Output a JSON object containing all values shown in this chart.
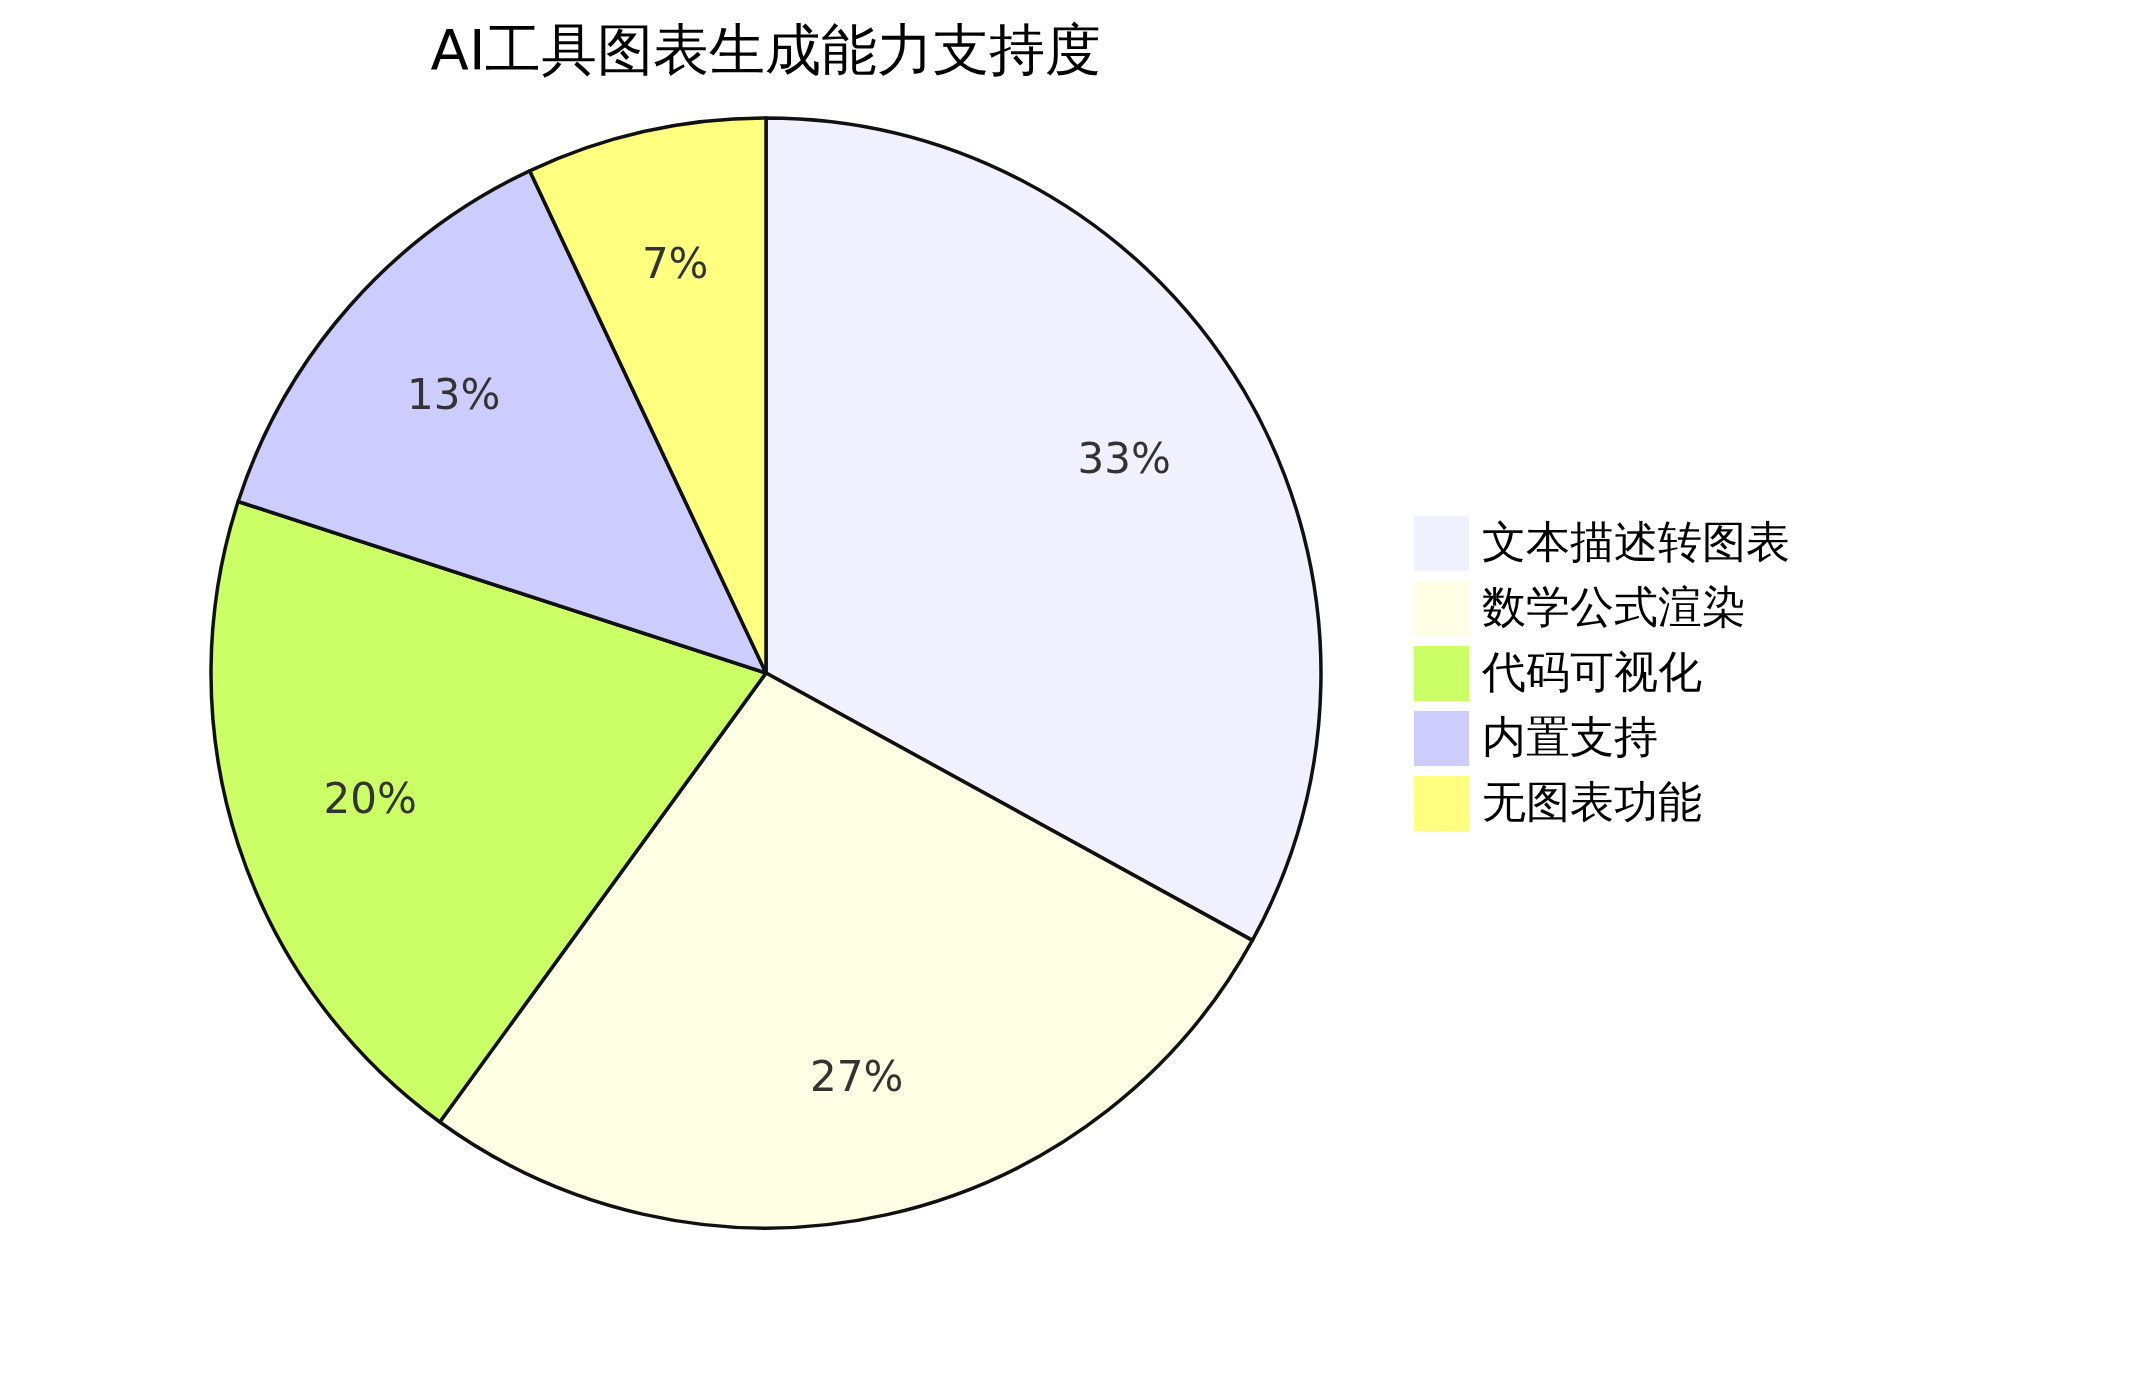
{
  "chart_data": {
    "type": "pie",
    "title": "AI工具图表生成能力支持度",
    "categories": [
      "文本描述转图表",
      "数学公式渲染",
      "代码可视化",
      "内置支持",
      "无图表功能"
    ],
    "values": [
      33,
      27,
      20,
      13,
      7
    ],
    "value_labels": [
      "33%",
      "27%",
      "20%",
      "13%",
      "7%"
    ],
    "colors": [
      "#f0f0fe",
      "#fefee4",
      "#ccff66",
      "#ccccff",
      "#ffff80"
    ],
    "legend": "right"
  }
}
